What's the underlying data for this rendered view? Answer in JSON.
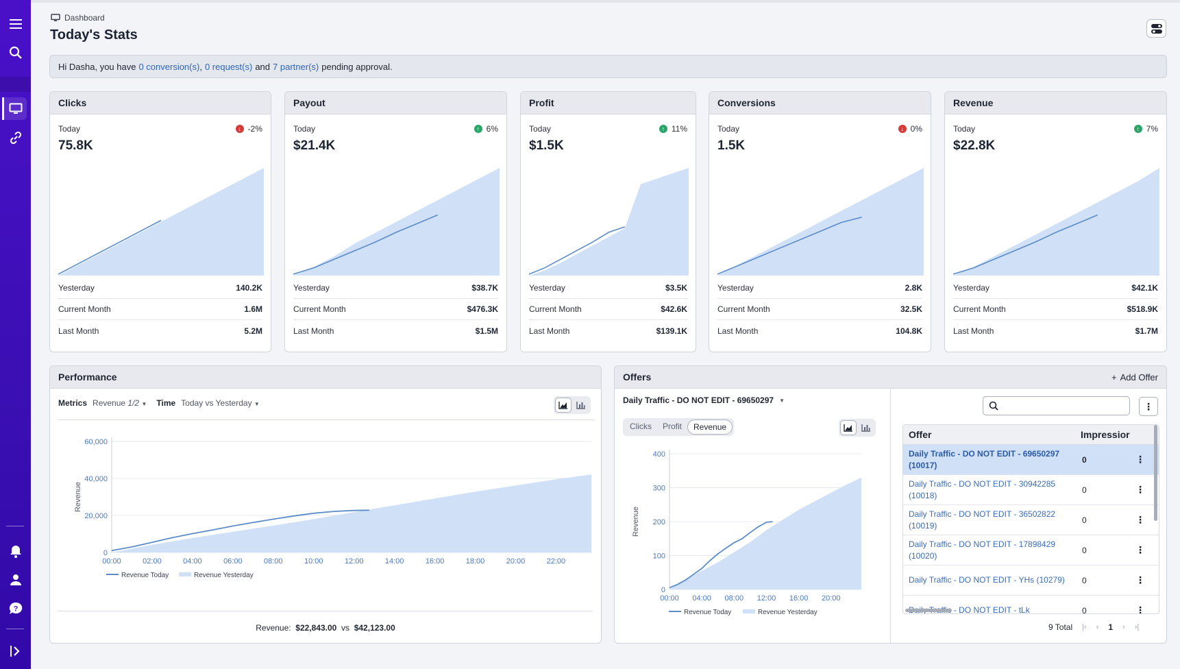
{
  "breadcrumb": "Dashboard",
  "page_title": "Today's Stats",
  "banner": {
    "prefix": "Hi Dasha, you have",
    "conversions_link": "0 conversion(s)",
    "sep1": ",",
    "requests_link": "0 request(s)",
    "and_text": "and",
    "partners_link": "7 partner(s)",
    "suffix": "pending approval."
  },
  "colors": {
    "sidebar": "#4a10c9",
    "accent_link": "#2f66b8",
    "area_fill": "#cfe0f7",
    "line_today": "#5b8cc9",
    "up": "#2aa56a",
    "down": "#d63a3a"
  },
  "cards": [
    {
      "title": "Clicks",
      "today_label": "Today",
      "value": "75.8K",
      "change": "-2%",
      "direction": "down",
      "rows": [
        {
          "label": "Yesterday",
          "value": "140.2K"
        },
        {
          "label": "Current Month",
          "value": "1.6M"
        },
        {
          "label": "Last Month",
          "value": "5.2M"
        }
      ]
    },
    {
      "title": "Payout",
      "today_label": "Today",
      "value": "$21.4K",
      "change": "6%",
      "direction": "up",
      "rows": [
        {
          "label": "Yesterday",
          "value": "$38.7K"
        },
        {
          "label": "Current Month",
          "value": "$476.3K"
        },
        {
          "label": "Last Month",
          "value": "$1.5M"
        }
      ]
    },
    {
      "title": "Profit",
      "today_label": "Today",
      "value": "$1.5K",
      "change": "11%",
      "direction": "up",
      "rows": [
        {
          "label": "Yesterday",
          "value": "$3.5K"
        },
        {
          "label": "Current Month",
          "value": "$42.6K"
        },
        {
          "label": "Last Month",
          "value": "$139.1K"
        }
      ]
    },
    {
      "title": "Conversions",
      "today_label": "Today",
      "value": "1.5K",
      "change": "0%",
      "direction": "down",
      "rows": [
        {
          "label": "Yesterday",
          "value": "2.8K"
        },
        {
          "label": "Current Month",
          "value": "32.5K"
        },
        {
          "label": "Last Month",
          "value": "104.8K"
        }
      ]
    },
    {
      "title": "Revenue",
      "today_label": "Today",
      "value": "$22.8K",
      "change": "7%",
      "direction": "up",
      "rows": [
        {
          "label": "Yesterday",
          "value": "$42.1K"
        },
        {
          "label": "Current Month",
          "value": "$518.9K"
        },
        {
          "label": "Last Month",
          "value": "$1.7M"
        }
      ]
    }
  ],
  "performance": {
    "title": "Performance",
    "metrics_label": "Metrics",
    "metrics_value": "Revenue",
    "metrics_fraction": "1/2",
    "time_label": "Time",
    "time_value": "Today vs Yesterday",
    "summary_label": "Revenue:",
    "summary_today": "$22,843.00",
    "summary_vs": "vs",
    "summary_yesterday": "$42,123.00"
  },
  "offers": {
    "title": "Offers",
    "add_label": "Add Offer",
    "selected_offer": "Daily Traffic - DO NOT EDIT - 69650297",
    "segments": [
      "Clicks",
      "Profit",
      "Revenue"
    ],
    "active_segment": "Revenue",
    "search_placeholder": "",
    "table": {
      "columns": [
        "Offer",
        "Impressior"
      ],
      "rows": [
        {
          "offer": "Daily Traffic - DO NOT EDIT - 69650297 (10017)",
          "impressions": "0",
          "selected": true
        },
        {
          "offer": "Daily Traffic - DO NOT EDIT - 30942285 (10018)",
          "impressions": "0",
          "selected": false
        },
        {
          "offer": "Daily Traffic - DO NOT EDIT - 36502822 (10019)",
          "impressions": "0",
          "selected": false
        },
        {
          "offer": "Daily Traffic - DO NOT EDIT - 17898429 (10020)",
          "impressions": "0",
          "selected": false
        },
        {
          "offer": "Daily Traffic - DO NOT EDIT - YHs (10279)",
          "impressions": "0",
          "selected": false
        },
        {
          "offer": "Daily Traffic - DO NOT EDIT - tLk",
          "impressions": "0",
          "selected": false
        }
      ]
    },
    "total": "9 Total",
    "current_page": "1"
  },
  "chart_data": [
    {
      "type": "area",
      "id": "perf",
      "title": "",
      "xlabel": "",
      "ylabel": "Revenue",
      "x_ticks": [
        "00:00",
        "02:00",
        "04:00",
        "06:00",
        "08:00",
        "10:00",
        "12:00",
        "14:00",
        "16:00",
        "18:00",
        "20:00",
        "22:00"
      ],
      "y_ticks": [
        "0",
        "20,000",
        "40,000",
        "60,000"
      ],
      "ylim": [
        0,
        60000
      ],
      "xlim": [
        0,
        23.75
      ],
      "legend_position": "bottom",
      "series": [
        {
          "name": "Revenue Today",
          "style": "line",
          "x": [
            0,
            1,
            2,
            3,
            4,
            5,
            6,
            7,
            8,
            9,
            10,
            11,
            12,
            12.75
          ],
          "y": [
            1000,
            3000,
            5500,
            8000,
            10200,
            12200,
            14300,
            16200,
            18000,
            19700,
            21200,
            22200,
            22700,
            22843
          ]
        },
        {
          "name": "Revenue Yesterday",
          "style": "area",
          "x": [
            0,
            2,
            4,
            6,
            8,
            10,
            12,
            14,
            16,
            18,
            20,
            22,
            23.75
          ],
          "y": [
            0,
            4200,
            7800,
            11200,
            14500,
            18000,
            21800,
            25500,
            29200,
            32800,
            36200,
            39500,
            42123
          ]
        }
      ]
    },
    {
      "type": "area",
      "id": "offers",
      "title": "",
      "xlabel": "",
      "ylabel": "Revenue",
      "x_ticks": [
        "00:00",
        "04:00",
        "08:00",
        "12:00",
        "16:00",
        "20:00"
      ],
      "y_ticks": [
        "0",
        "100",
        "200",
        "300",
        "400"
      ],
      "ylim": [
        0,
        400
      ],
      "xlim": [
        0,
        23.75
      ],
      "legend_position": "bottom",
      "series": [
        {
          "name": "Revenue Today",
          "style": "line",
          "x": [
            0,
            1,
            2,
            3,
            4,
            5,
            6,
            7,
            8,
            9,
            10,
            11,
            12,
            12.75
          ],
          "y": [
            5,
            15,
            28,
            45,
            62,
            85,
            105,
            122,
            138,
            150,
            168,
            185,
            198,
            200
          ]
        },
        {
          "name": "Revenue Yesterday",
          "style": "area",
          "x": [
            0,
            2,
            4,
            6,
            8,
            10,
            12,
            14,
            16,
            18,
            20,
            22,
            23.75
          ],
          "y": [
            0,
            30,
            55,
            80,
            110,
            140,
            175,
            205,
            235,
            260,
            285,
            310,
            330
          ]
        }
      ]
    }
  ]
}
